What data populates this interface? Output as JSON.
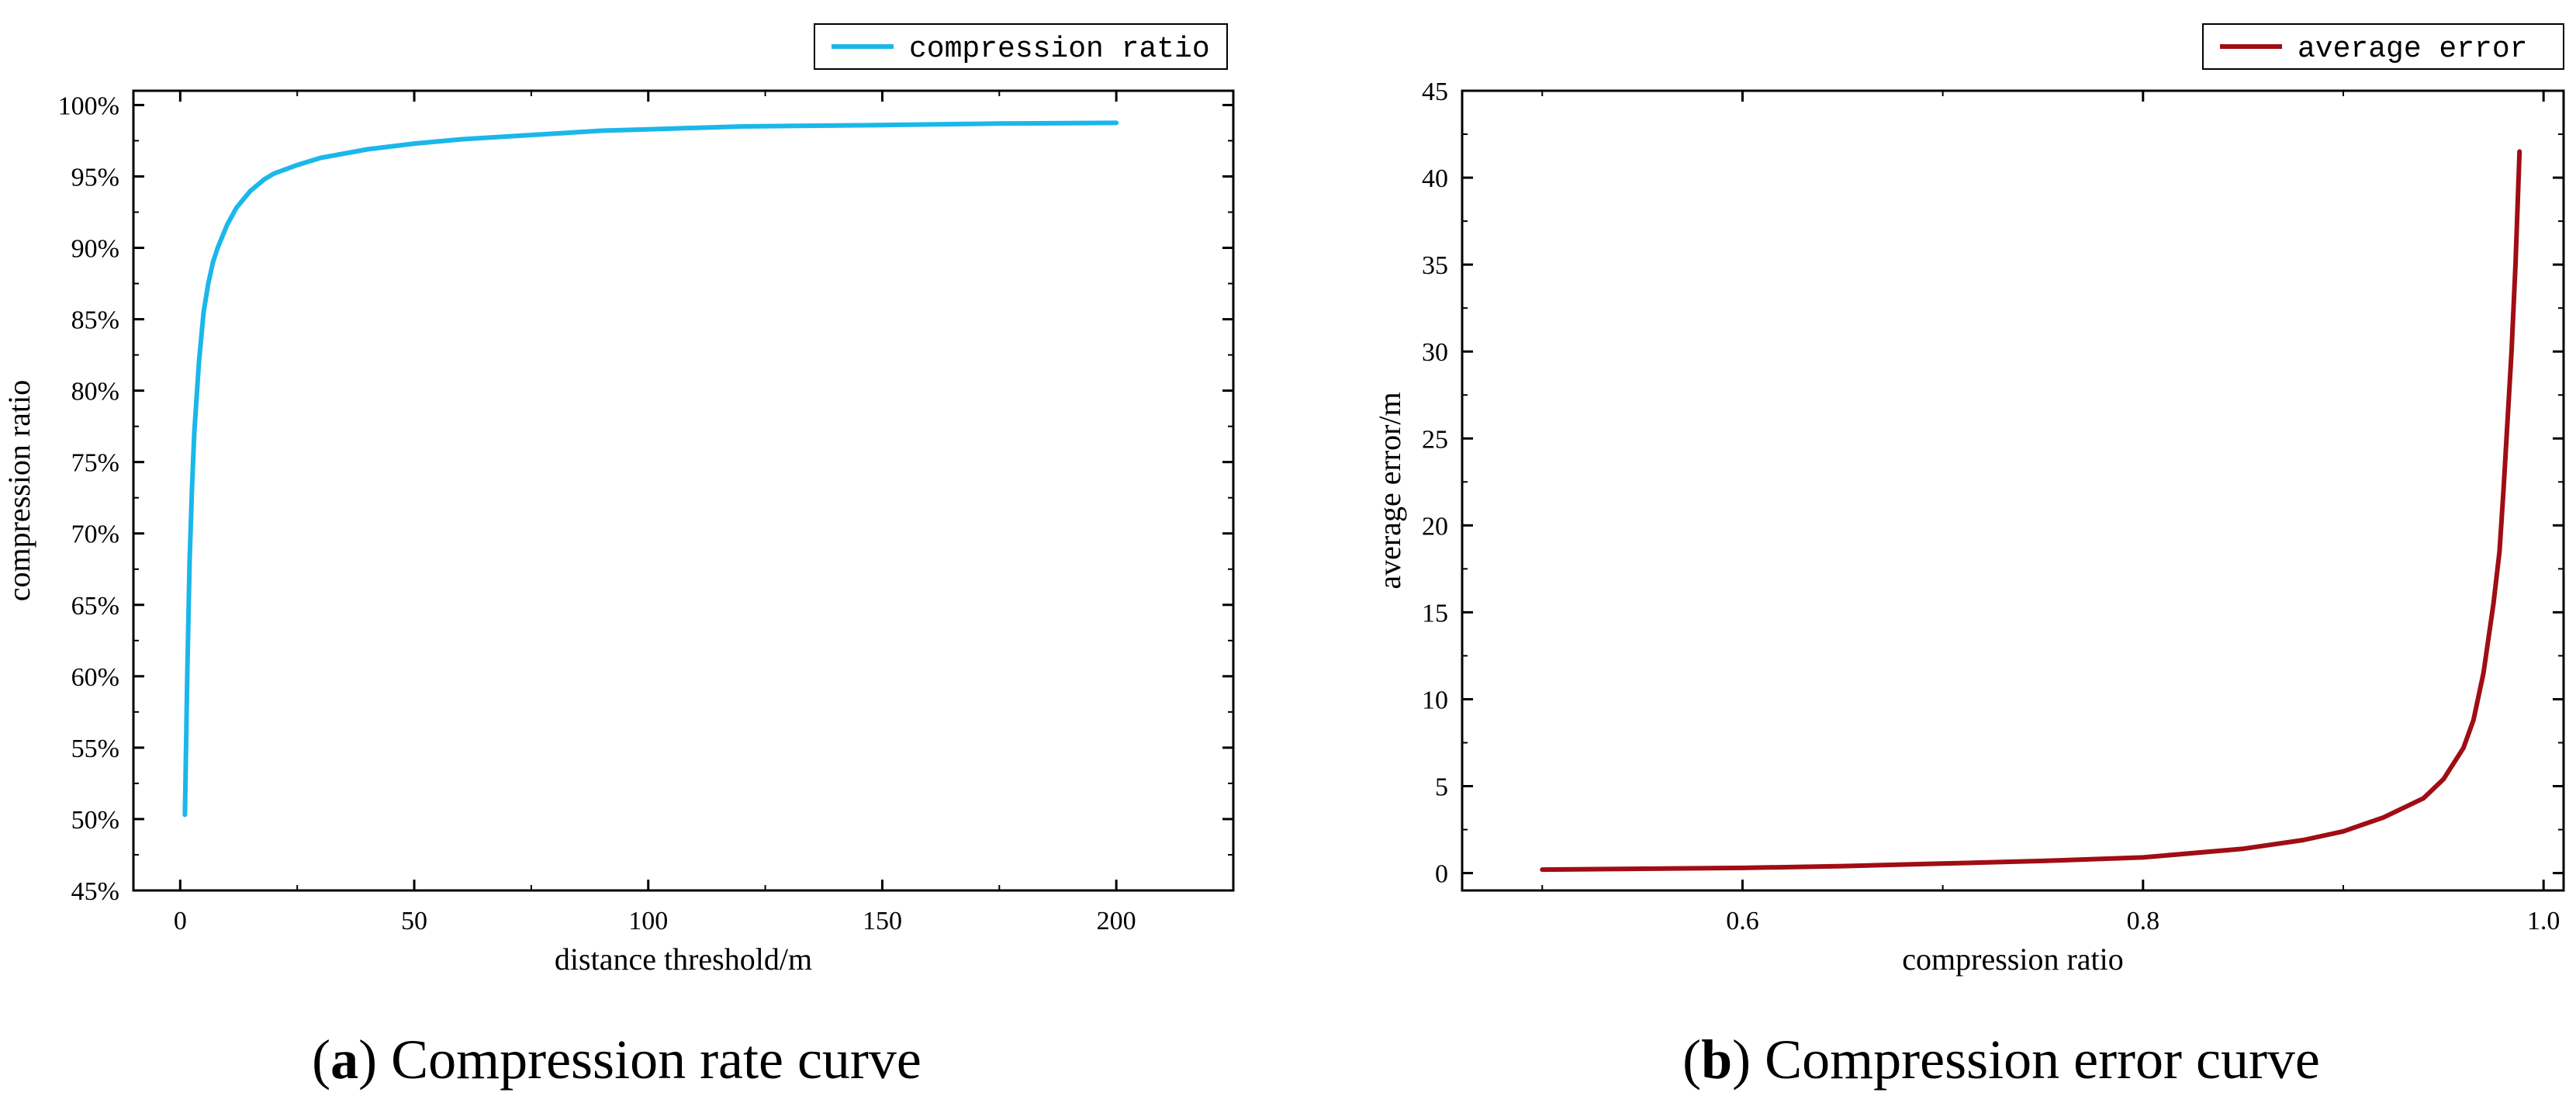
{
  "chart_data": [
    {
      "type": "line",
      "title": "",
      "xlabel": "distance threshold/m",
      "ylabel": "compression ratio",
      "xlim": [
        -10,
        225
      ],
      "ylim": [
        45,
        101
      ],
      "xticks": [
        0,
        50,
        100,
        150,
        200
      ],
      "xtick_labels": [
        "0",
        "50",
        "100",
        "150",
        "200"
      ],
      "yticks": [
        45,
        50,
        55,
        60,
        65,
        70,
        75,
        80,
        85,
        90,
        95,
        100
      ],
      "ytick_labels": [
        "45%",
        "50%",
        "55%",
        "60%",
        "65%",
        "70%",
        "75%",
        "80%",
        "85%",
        "90%",
        "95%",
        "100%"
      ],
      "legend": {
        "label": "compression ratio",
        "position": "top-right outside"
      },
      "color": "#1bb7ea",
      "caption_prefix": "a",
      "caption_text": "Compression rate curve",
      "series": [
        {
          "name": "compression ratio",
          "x": [
            1,
            1.5,
            2,
            2.5,
            3,
            4,
            5,
            6,
            7,
            8,
            10,
            12,
            15,
            18,
            20,
            25,
            30,
            35,
            40,
            50,
            60,
            70,
            80,
            90,
            100,
            120,
            150,
            175,
            200
          ],
          "y": [
            50.3,
            60,
            68,
            73,
            77,
            82,
            85.5,
            87.5,
            89,
            90,
            91.6,
            92.8,
            94,
            94.8,
            95.2,
            95.8,
            96.3,
            96.6,
            96.9,
            97.3,
            97.6,
            97.8,
            98,
            98.2,
            98.3,
            98.5,
            98.6,
            98.7,
            98.75
          ]
        }
      ]
    },
    {
      "type": "line",
      "title": "",
      "xlabel": "compression ratio",
      "ylabel": "average error/m",
      "xlim": [
        0.46,
        1.01
      ],
      "ylim": [
        -1,
        45
      ],
      "xticks": [
        0.6,
        0.8,
        1.0
      ],
      "xtick_labels": [
        "0.6",
        "0.8",
        "1.0"
      ],
      "yticks": [
        0,
        5,
        10,
        15,
        20,
        25,
        30,
        35,
        40,
        45
      ],
      "ytick_labels": [
        "0",
        "5",
        "10",
        "15",
        "20",
        "25",
        "30",
        "35",
        "40",
        "45"
      ],
      "legend": {
        "label": "average error",
        "position": "top-right outside"
      },
      "color": "#a00d14",
      "caption_prefix": "b",
      "caption_text": "Compression error curve",
      "series": [
        {
          "name": "average error",
          "x": [
            0.5,
            0.55,
            0.6,
            0.65,
            0.7,
            0.75,
            0.8,
            0.85,
            0.88,
            0.9,
            0.92,
            0.94,
            0.95,
            0.96,
            0.965,
            0.97,
            0.975,
            0.978,
            0.98,
            0.982,
            0.984,
            0.986,
            0.988
          ],
          "y": [
            0.2,
            0.25,
            0.3,
            0.4,
            0.55,
            0.7,
            0.9,
            1.4,
            1.9,
            2.4,
            3.2,
            4.3,
            5.4,
            7.2,
            8.8,
            11.5,
            15.5,
            18.5,
            22,
            26,
            30,
            35,
            41.5
          ]
        }
      ]
    }
  ]
}
